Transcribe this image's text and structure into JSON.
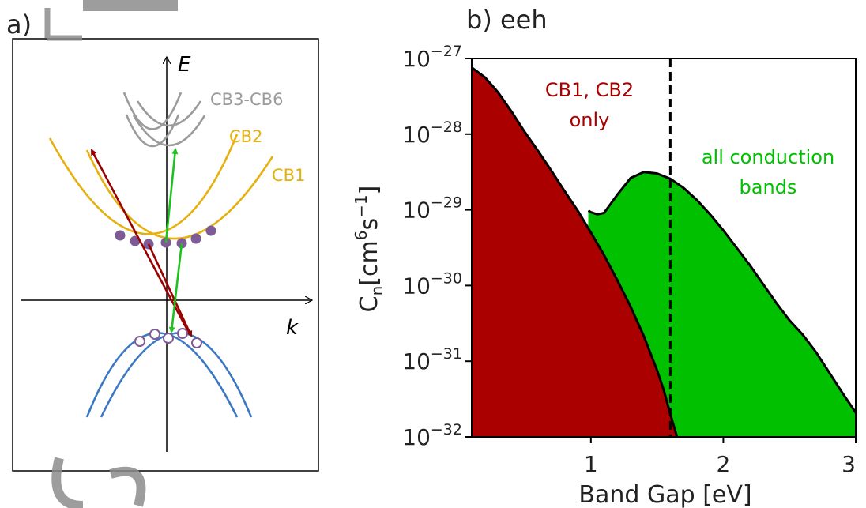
{
  "panel_a": {
    "label": "a)",
    "e_axis_label": "E",
    "k_axis_label": "k",
    "band_labels": {
      "cb3_cb6": "CB3-CB6",
      "cb2": "CB2",
      "cb1": "CB1"
    },
    "colors": {
      "conduction": "#e6b00f",
      "higher": "#9b9b9b",
      "valence": "#3a78c4",
      "carrier": "#7e5a96",
      "red_arrow": "#990000",
      "green_arrow": "#1ec21e"
    }
  },
  "panel_b": {
    "label": "b) eeh"
  },
  "chart_data": {
    "type": "area",
    "xlabel": "Band Gap [eV]",
    "ylabel_base": "C",
    "ylabel_sub": "n",
    "ylabel_unit": "[cm",
    "ylabel_exp1": "6",
    "ylabel_mid": "s",
    "ylabel_exp2": "−1",
    "ylabel_end": "]",
    "xlim": [
      0.1,
      3.0
    ],
    "ylim_log10": [
      -32,
      -27
    ],
    "yscale": "log",
    "x_ticks": [
      1,
      2,
      3
    ],
    "x_tick_labels": [
      "1",
      "2",
      "3"
    ],
    "y_ticks_log10": [
      -27,
      -28,
      -29,
      -30,
      -31,
      -32
    ],
    "y_tick_base": "10",
    "y_tick_exponents": [
      "−27",
      "−28",
      "−29",
      "−30",
      "−31",
      "−32"
    ],
    "vline_x": 1.6,
    "colors": {
      "cb12": "#aa0000",
      "all": "#00c000",
      "line": "#000000"
    },
    "series": [
      {
        "name": "CB1, CB2 only",
        "annotation_lines": [
          "CB1, CB2",
          "only"
        ],
        "x": [
          0.1,
          0.2,
          0.3,
          0.4,
          0.5,
          0.6,
          0.7,
          0.8,
          0.9,
          1.0,
          1.1,
          1.2,
          1.3,
          1.4,
          1.5,
          1.55,
          1.6,
          1.65
        ],
        "y_log10": [
          -27.12,
          -27.25,
          -27.45,
          -27.7,
          -27.97,
          -28.22,
          -28.48,
          -28.75,
          -29.01,
          -29.3,
          -29.6,
          -29.93,
          -30.28,
          -30.67,
          -31.12,
          -31.38,
          -31.7,
          -32.0
        ]
      },
      {
        "name": "all conduction bands",
        "annotation_lines": [
          "all conduction",
          "bands"
        ],
        "x": [
          0.98,
          1.0,
          1.05,
          1.1,
          1.2,
          1.3,
          1.4,
          1.5,
          1.6,
          1.7,
          1.8,
          1.9,
          2.0,
          2.1,
          2.2,
          2.3,
          2.4,
          2.5,
          2.6,
          2.7,
          2.8,
          2.9,
          3.0
        ],
        "y_log10": [
          -29.01,
          -29.03,
          -29.06,
          -29.04,
          -28.8,
          -28.58,
          -28.5,
          -28.52,
          -28.59,
          -28.71,
          -28.87,
          -29.06,
          -29.27,
          -29.5,
          -29.73,
          -29.98,
          -30.23,
          -30.46,
          -30.65,
          -30.88,
          -31.15,
          -31.42,
          -31.68
        ]
      }
    ]
  }
}
